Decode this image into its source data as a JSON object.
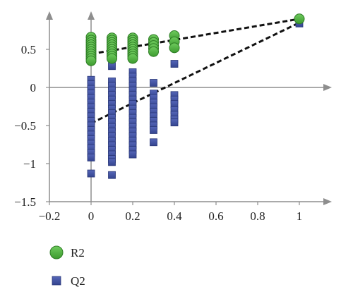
{
  "chart_data": {
    "type": "scatter",
    "title": "",
    "xlabel": "",
    "ylabel": "",
    "xlim": [
      -0.2,
      1.15
    ],
    "ylim": [
      -1.5,
      0.95
    ],
    "xticks": [
      -0.2,
      0,
      0.2,
      0.4,
      0.6,
      0.8,
      1
    ],
    "xtick_labels": [
      "−0.2",
      "0",
      "0.2",
      "0.4",
      "0.6",
      "0.8",
      "1"
    ],
    "yticks": [
      0.5,
      0,
      -0.5,
      -1,
      -1.5
    ],
    "ytick_labels": [
      "0.5",
      "0",
      "−0.5",
      "−1",
      "−1.5"
    ],
    "grid": false,
    "legend_position": "bottom-left",
    "series": [
      {
        "name": "R2",
        "marker": "circle",
        "color": "#4cae3c",
        "stroke": "#2e7d25",
        "points": [
          [
            0,
            0.66
          ],
          [
            0,
            0.62
          ],
          [
            0,
            0.59
          ],
          [
            0,
            0.56
          ],
          [
            0,
            0.53
          ],
          [
            0,
            0.5
          ],
          [
            0,
            0.47
          ],
          [
            0,
            0.44
          ],
          [
            0,
            0.41
          ],
          [
            0,
            0.38
          ],
          [
            0,
            0.35
          ],
          [
            0.1,
            0.65
          ],
          [
            0.1,
            0.62
          ],
          [
            0.1,
            0.59
          ],
          [
            0.1,
            0.56
          ],
          [
            0.1,
            0.53
          ],
          [
            0.1,
            0.5
          ],
          [
            0.1,
            0.47
          ],
          [
            0.1,
            0.44
          ],
          [
            0.1,
            0.41
          ],
          [
            0.1,
            0.38
          ],
          [
            0.2,
            0.65
          ],
          [
            0.2,
            0.62
          ],
          [
            0.2,
            0.59
          ],
          [
            0.2,
            0.56
          ],
          [
            0.2,
            0.53
          ],
          [
            0.2,
            0.5
          ],
          [
            0.2,
            0.47
          ],
          [
            0.2,
            0.44
          ],
          [
            0.2,
            0.41
          ],
          [
            0.2,
            0.38
          ],
          [
            0.3,
            0.63
          ],
          [
            0.3,
            0.59
          ],
          [
            0.3,
            0.55
          ],
          [
            0.3,
            0.51
          ],
          [
            0.3,
            0.47
          ],
          [
            0.4,
            0.68
          ],
          [
            0.4,
            0.6
          ],
          [
            0.4,
            0.52
          ],
          [
            1,
            0.9
          ]
        ],
        "trend_line": [
          [
            0,
            0.44
          ],
          [
            1,
            0.9
          ]
        ]
      },
      {
        "name": "Q2",
        "marker": "square",
        "color": "#3c4ea1",
        "stroke": "#2a3878",
        "points": [
          [
            0,
            0.1
          ],
          [
            0,
            0.04
          ],
          [
            0,
            -0.02
          ],
          [
            0,
            -0.08
          ],
          [
            0,
            -0.14
          ],
          [
            0,
            -0.2
          ],
          [
            0,
            -0.26
          ],
          [
            0,
            -0.32
          ],
          [
            0,
            -0.38
          ],
          [
            0,
            -0.44
          ],
          [
            0,
            -0.5
          ],
          [
            0,
            -0.56
          ],
          [
            0,
            -0.62
          ],
          [
            0,
            -0.68
          ],
          [
            0,
            -0.74
          ],
          [
            0,
            -0.8
          ],
          [
            0,
            -0.86
          ],
          [
            0,
            -0.92
          ],
          [
            0,
            -1.13
          ],
          [
            0.1,
            0.08
          ],
          [
            0.1,
            0.02
          ],
          [
            0.1,
            -0.04
          ],
          [
            0.1,
            -0.1
          ],
          [
            0.1,
            -0.16
          ],
          [
            0.1,
            -0.22
          ],
          [
            0.1,
            -0.28
          ],
          [
            0.1,
            -0.34
          ],
          [
            0.1,
            -0.4
          ],
          [
            0.1,
            -0.46
          ],
          [
            0.1,
            -0.52
          ],
          [
            0.1,
            -0.58
          ],
          [
            0.1,
            -0.64
          ],
          [
            0.1,
            -0.7
          ],
          [
            0.1,
            -0.76
          ],
          [
            0.1,
            -0.82
          ],
          [
            0.1,
            -0.88
          ],
          [
            0.1,
            -0.94
          ],
          [
            0.1,
            -0.98
          ],
          [
            0.1,
            -1.15
          ],
          [
            0.1,
            0.28
          ],
          [
            0.2,
            0.2
          ],
          [
            0.2,
            0.14
          ],
          [
            0.2,
            0.08
          ],
          [
            0.2,
            0.02
          ],
          [
            0.2,
            -0.04
          ],
          [
            0.2,
            -0.1
          ],
          [
            0.2,
            -0.16
          ],
          [
            0.2,
            -0.22
          ],
          [
            0.2,
            -0.28
          ],
          [
            0.2,
            -0.34
          ],
          [
            0.2,
            -0.4
          ],
          [
            0.2,
            -0.46
          ],
          [
            0.2,
            -0.52
          ],
          [
            0.2,
            -0.58
          ],
          [
            0.2,
            -0.64
          ],
          [
            0.2,
            -0.7
          ],
          [
            0.2,
            -0.76
          ],
          [
            0.2,
            -0.82
          ],
          [
            0.2,
            -0.88
          ],
          [
            0.3,
            0.06
          ],
          [
            0.3,
            -0.08
          ],
          [
            0.3,
            -0.14
          ],
          [
            0.3,
            -0.2
          ],
          [
            0.3,
            -0.26
          ],
          [
            0.3,
            -0.32
          ],
          [
            0.3,
            -0.38
          ],
          [
            0.3,
            -0.44
          ],
          [
            0.3,
            -0.5
          ],
          [
            0.3,
            -0.56
          ],
          [
            0.3,
            -0.72
          ],
          [
            0.4,
            0.31
          ],
          [
            0.4,
            -0.1
          ],
          [
            0.4,
            -0.16
          ],
          [
            0.4,
            -0.22
          ],
          [
            0.4,
            -0.3
          ],
          [
            0.4,
            -0.36
          ],
          [
            0.4,
            -0.42
          ],
          [
            0.4,
            -0.46
          ],
          [
            1,
            0.84
          ]
        ],
        "trend_line": [
          [
            0,
            -0.47
          ],
          [
            1,
            0.85
          ]
        ]
      }
    ],
    "legend": [
      {
        "label": "R2",
        "marker": "circle"
      },
      {
        "label": "Q2",
        "marker": "square"
      }
    ]
  }
}
